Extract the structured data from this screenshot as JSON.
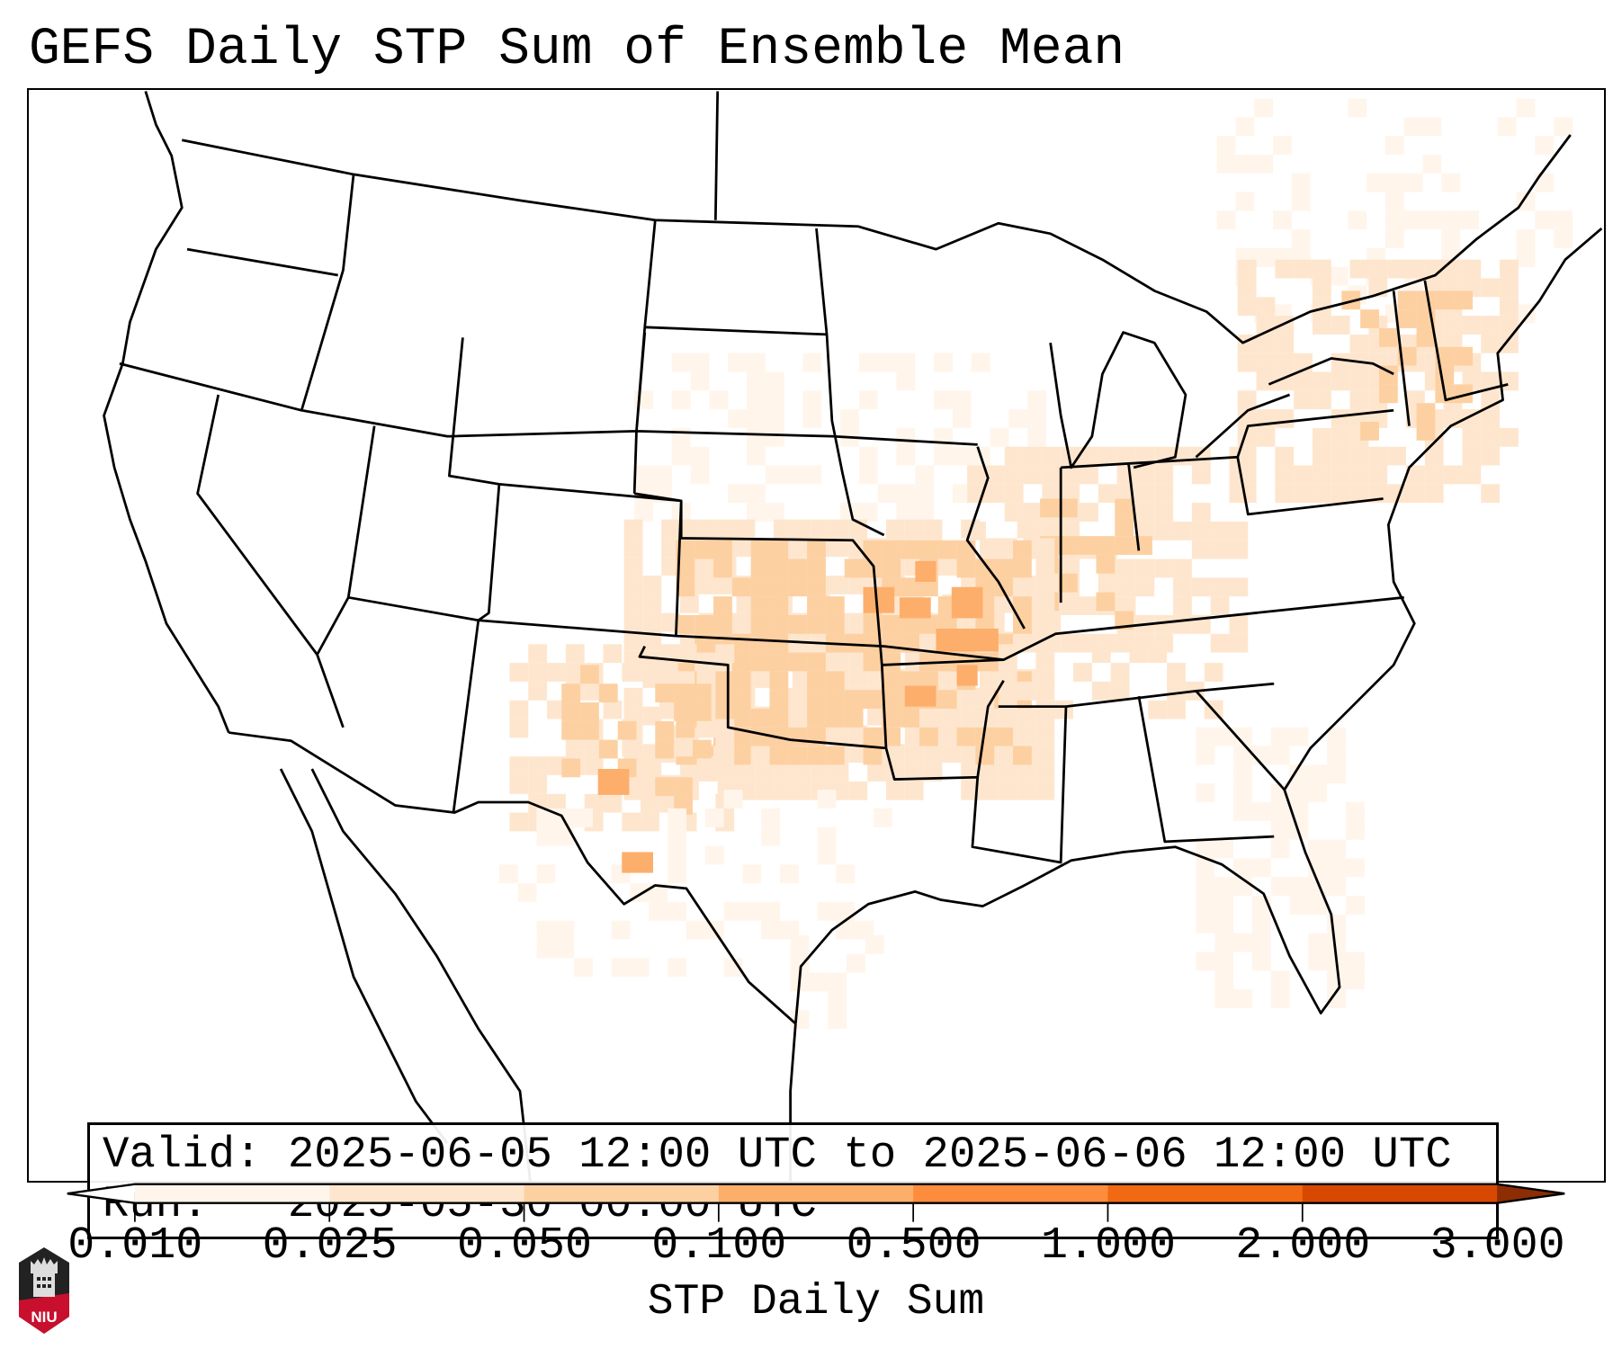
{
  "title": "GEFS Daily STP Sum of Ensemble Mean",
  "info": {
    "valid_line": "Valid: 2025-06-05 12:00 UTC to 2025-06-06 12:00 UTC",
    "run_line": "Run:   2025-05-30 00:00 UTC"
  },
  "logo_text": "NIU",
  "chart_data": {
    "type": "heatmap",
    "title": "GEFS Daily STP Sum of Ensemble Mean",
    "colorbar": {
      "label": "STP Daily Sum",
      "levels": [
        "0.010",
        "0.025",
        "0.050",
        "0.100",
        "0.500",
        "1.000",
        "2.000",
        "3.000"
      ],
      "colors": [
        "#fff5eb",
        "#fee6ce",
        "#fdd0a2",
        "#fdae6b",
        "#fd8d3c",
        "#f16913",
        "#d94801"
      ],
      "under_color": "#ffffff",
      "over_color": "#8c2d04",
      "extend": "both"
    },
    "max_region": "Missouri / eastern Kansas / northern Arkansas / west Texas",
    "max_category": "0.100-0.500"
  }
}
